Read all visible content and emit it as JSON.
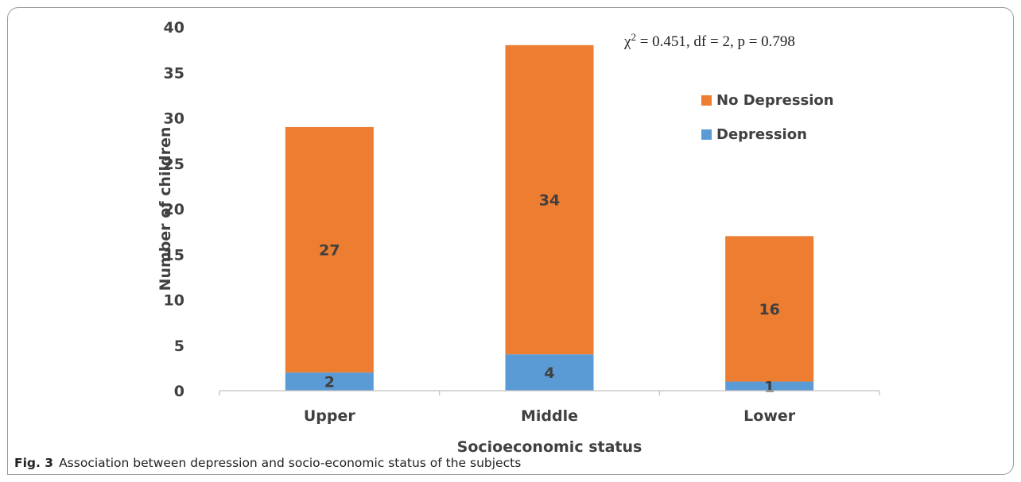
{
  "figure": {
    "number": "Fig. 3",
    "caption": "Association between depression and socio-economic status of the subjects"
  },
  "chart_data": {
    "type": "bar",
    "stacked": true,
    "title": "",
    "xlabel": "Socioeconomic status",
    "ylabel": "Number of children",
    "categories": [
      "Upper",
      "Middle",
      "Lower"
    ],
    "ylim": [
      0,
      40
    ],
    "yticks": [
      0,
      5,
      10,
      15,
      20,
      25,
      30,
      35,
      40
    ],
    "grid": false,
    "legend_position": "right",
    "series": [
      {
        "name": "Depression",
        "values": [
          2,
          4,
          1
        ],
        "color": "#5b9bd5"
      },
      {
        "name": "No Depression",
        "values": [
          27,
          34,
          16
        ],
        "color": "#ed7d31"
      }
    ],
    "legend_order": [
      "No Depression",
      "Depression"
    ],
    "annotation": {
      "chi": "χ",
      "sup": "2",
      "rest": " = 0.451, df = 2, p = 0.798"
    }
  }
}
